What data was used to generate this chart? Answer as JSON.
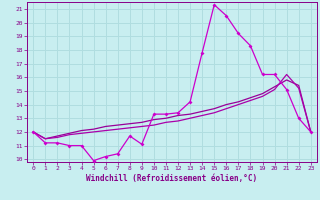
{
  "xlabel": "Windchill (Refroidissement éolien,°C)",
  "background_color": "#c8eef0",
  "grid_color": "#b0dde0",
  "line_color_main": "#cc00cc",
  "line_color_reg1": "#990099",
  "line_color_reg2": "#aa00aa",
  "spine_color": "#880088",
  "tick_color": "#880088",
  "label_color": "#880088",
  "x": [
    0,
    1,
    2,
    3,
    4,
    5,
    6,
    7,
    8,
    9,
    10,
    11,
    12,
    13,
    14,
    15,
    16,
    17,
    18,
    19,
    20,
    21,
    22,
    23
  ],
  "y_main": [
    12,
    11.2,
    11.2,
    11.0,
    11.0,
    9.9,
    10.2,
    10.4,
    11.7,
    11.1,
    13.3,
    13.3,
    13.4,
    14.2,
    17.8,
    21.3,
    20.5,
    19.2,
    18.3,
    16.2,
    16.2,
    15.1,
    13.0,
    12.0
  ],
  "y_reg1": [
    12.0,
    11.5,
    11.7,
    11.9,
    12.1,
    12.2,
    12.4,
    12.5,
    12.6,
    12.7,
    12.9,
    13.0,
    13.2,
    13.3,
    13.5,
    13.7,
    14.0,
    14.2,
    14.5,
    14.8,
    15.3,
    15.8,
    15.4,
    12.0
  ],
  "y_reg2": [
    12.0,
    11.5,
    11.6,
    11.8,
    11.9,
    12.0,
    12.1,
    12.2,
    12.3,
    12.4,
    12.5,
    12.7,
    12.8,
    13.0,
    13.2,
    13.4,
    13.7,
    14.0,
    14.3,
    14.6,
    15.1,
    16.2,
    15.2,
    12.0
  ],
  "ylim": [
    9.8,
    21.5
  ],
  "xlim": [
    -0.5,
    23.5
  ],
  "yticks": [
    10,
    11,
    12,
    13,
    14,
    15,
    16,
    17,
    18,
    19,
    20,
    21
  ],
  "xticks": [
    0,
    1,
    2,
    3,
    4,
    5,
    6,
    7,
    8,
    9,
    10,
    11,
    12,
    13,
    14,
    15,
    16,
    17,
    18,
    19,
    20,
    21,
    22,
    23
  ]
}
